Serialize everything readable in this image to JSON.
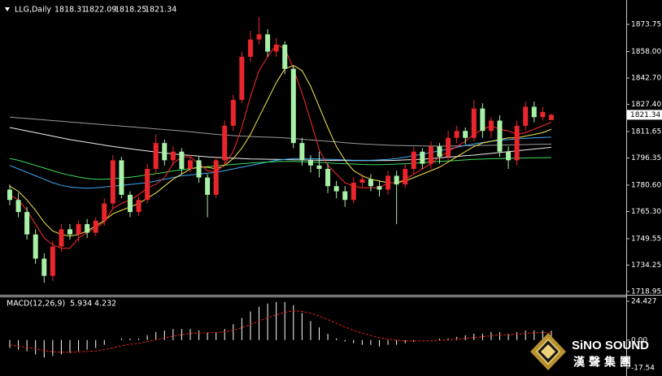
{
  "chart_data": [
    {
      "type": "candlestick",
      "title": "LLG,Daily",
      "open": [
        1778,
        1772,
        1765,
        1752,
        1738,
        1728,
        1745,
        1755,
        1752,
        1758,
        1753,
        1760,
        1770,
        1795,
        1775,
        1765,
        1772,
        1790,
        1805,
        1795,
        1800,
        1790,
        1795,
        1785,
        1775,
        1795,
        1815,
        1830,
        1855,
        1865,
        1868,
        1858,
        1862,
        1848,
        1805,
        1795,
        1792,
        1790,
        1780,
        1777,
        1772,
        1782,
        1784,
        1780,
        1778,
        1786,
        1781,
        1790,
        1800,
        1793,
        1803,
        1797,
        1808,
        1812,
        1808,
        1825,
        1812,
        1818,
        1800,
        1795,
        1815,
        1826,
        1820,
        1818.31
      ],
      "high": [
        1781,
        1776,
        1768,
        1755,
        1741,
        1748,
        1758,
        1758,
        1760,
        1761,
        1762,
        1773,
        1798,
        1797,
        1777,
        1774,
        1793,
        1810,
        1807,
        1803,
        1802,
        1798,
        1797,
        1787,
        1797,
        1818,
        1833,
        1858,
        1870,
        1878,
        1871,
        1866,
        1864,
        1850,
        1808,
        1798,
        1800,
        1793,
        1783,
        1780,
        1785,
        1787,
        1787,
        1783,
        1789,
        1789,
        1793,
        1803,
        1802,
        1806,
        1805,
        1812,
        1815,
        1814,
        1830,
        1828,
        1820,
        1821,
        1803,
        1818,
        1829,
        1829,
        1826,
        1822.09
      ],
      "low": [
        1769,
        1762,
        1749,
        1735,
        1724,
        1725,
        1742,
        1749,
        1748,
        1750,
        1751,
        1757,
        1767,
        1773,
        1762,
        1763,
        1770,
        1787,
        1792,
        1792,
        1787,
        1788,
        1782,
        1762,
        1773,
        1792,
        1812,
        1828,
        1852,
        1862,
        1855,
        1855,
        1845,
        1802,
        1792,
        1788,
        1785,
        1776,
        1773,
        1768,
        1770,
        1779,
        1777,
        1774,
        1775,
        1758,
        1779,
        1787,
        1790,
        1790,
        1793,
        1795,
        1805,
        1804,
        1806,
        1808,
        1808,
        1797,
        1790,
        1792,
        1812,
        1817,
        1818,
        1818.25
      ],
      "close": [
        1772,
        1765,
        1752,
        1738,
        1728,
        1745,
        1755,
        1752,
        1758,
        1753,
        1760,
        1770,
        1795,
        1775,
        1765,
        1772,
        1790,
        1805,
        1795,
        1800,
        1790,
        1795,
        1785,
        1775,
        1795,
        1815,
        1830,
        1855,
        1865,
        1868,
        1858,
        1862,
        1848,
        1805,
        1795,
        1792,
        1790,
        1780,
        1777,
        1772,
        1782,
        1784,
        1780,
        1778,
        1786,
        1781,
        1790,
        1800,
        1793,
        1803,
        1797,
        1808,
        1812,
        1808,
        1825,
        1812,
        1818,
        1800,
        1795,
        1815,
        1826,
        1820,
        1823,
        1821.34
      ],
      "up_color": "#e8262b",
      "down_color": "#a8f0a8",
      "series": [
        {
          "color": "#9a9a9a",
          "values": [
            1820,
            1819.6,
            1819.2,
            1818.8,
            1818.4,
            1818,
            1817.6,
            1817.2,
            1816.8,
            1816.4,
            1816,
            1815.6,
            1815.2,
            1814.8,
            1814.4,
            1814,
            1813.6,
            1813.2,
            1812.8,
            1812.4,
            1812,
            1811.5,
            1811,
            1810.5,
            1810,
            1809.6,
            1809.3,
            1809,
            1808.8,
            1808.6,
            1808.4,
            1808.2,
            1808,
            1807.6,
            1807.2,
            1806.8,
            1806.4,
            1806,
            1805.6,
            1805.2,
            1804.8,
            1804.5,
            1804.2,
            1804,
            1803.8,
            1803.6,
            1803.5,
            1803.4,
            1803.3,
            1803.2,
            1803.2,
            1803.2,
            1803.3,
            1803.4,
            1803.5,
            1803.6,
            1803.7,
            1803.8,
            1803.9,
            1804,
            1804.1,
            1804.2,
            1804.3,
            1804.4
          ]
        },
        {
          "color": "#f0f0f0",
          "values": [
            1814,
            1813,
            1812,
            1811,
            1810,
            1809,
            1808,
            1807,
            1806.2,
            1805.4,
            1804.6,
            1803.8,
            1803,
            1802.3,
            1801.6,
            1801,
            1800.4,
            1799.8,
            1799.2,
            1798.7,
            1798.2,
            1797.8,
            1797.4,
            1797,
            1796.7,
            1796.4,
            1796.2,
            1796,
            1795.8,
            1795.7,
            1795.6,
            1795.5,
            1795.4,
            1795.3,
            1795.2,
            1795.1,
            1795,
            1795,
            1794.9,
            1794.9,
            1794.8,
            1794.8,
            1794.8,
            1794.8,
            1794.9,
            1795,
            1795.2,
            1795.4,
            1795.6,
            1796,
            1796.4,
            1796.8,
            1797.2,
            1797.6,
            1798,
            1798.5,
            1799,
            1799.5,
            1800,
            1800.5,
            1801,
            1801.5,
            1802,
            1802.5
          ]
        },
        {
          "color": "#3fa9f5",
          "values": [
            1792,
            1790,
            1788,
            1786,
            1784,
            1782,
            1780.5,
            1779.5,
            1779,
            1778.8,
            1779,
            1779.5,
            1780,
            1780.5,
            1781,
            1781.5,
            1782,
            1783,
            1784,
            1785,
            1786,
            1786.5,
            1787,
            1787.5,
            1788,
            1789,
            1790,
            1791,
            1792,
            1793,
            1794,
            1795,
            1795.5,
            1796,
            1796,
            1796,
            1795.8,
            1795.6,
            1795.4,
            1795.2,
            1795,
            1795,
            1795,
            1795.2,
            1795.5,
            1796,
            1796.8,
            1797.6,
            1798.5,
            1799.5,
            1800.5,
            1801.5,
            1802.5,
            1803.5,
            1804.5,
            1805.3,
            1806,
            1806.6,
            1807,
            1807.4,
            1807.7,
            1808,
            1808.2,
            1808.4
          ]
        },
        {
          "color": "#3ddc5a",
          "values": [
            1796,
            1795,
            1793.5,
            1792,
            1790.5,
            1789,
            1787.5,
            1786.3,
            1785.3,
            1784.5,
            1784,
            1784,
            1784.3,
            1784.7,
            1785.2,
            1785.8,
            1786.5,
            1787.2,
            1788,
            1788.8,
            1789.5,
            1790.2,
            1790.8,
            1791.3,
            1791.8,
            1792.2,
            1792.6,
            1793,
            1793.4,
            1793.7,
            1794,
            1794.2,
            1794.3,
            1794.3,
            1794.2,
            1794,
            1793.8,
            1793.5,
            1793.2,
            1793,
            1792.8,
            1792.6,
            1792.5,
            1792.5,
            1792.6,
            1792.8,
            1793,
            1793.3,
            1793.6,
            1794,
            1794.3,
            1794.6,
            1794.9,
            1795.2,
            1795.5,
            1795.7,
            1795.9,
            1796,
            1796.1,
            1796.2,
            1796.3,
            1796.4,
            1796.5,
            1796.6
          ]
        },
        {
          "color": "#f5e84a",
          "values": [
            1780,
            1777,
            1772,
            1766,
            1759,
            1754,
            1752,
            1751,
            1752,
            1754,
            1757,
            1760,
            1764,
            1766,
            1768,
            1770,
            1773,
            1776,
            1780,
            1784,
            1787,
            1790,
            1791,
            1791,
            1790,
            1792,
            1796,
            1802,
            1810,
            1820,
            1830,
            1840,
            1848,
            1850,
            1847,
            1838,
            1826,
            1814,
            1803,
            1795,
            1789,
            1786,
            1784,
            1783,
            1782,
            1782,
            1783,
            1785,
            1787,
            1789,
            1791,
            1794,
            1797,
            1800,
            1803,
            1805,
            1806,
            1807,
            1808,
            1808,
            1809,
            1810,
            1811,
            1813
          ]
        },
        {
          "color": "#ff2a2a",
          "values": [
            1775,
            1772,
            1766,
            1758,
            1750,
            1746,
            1744,
            1744,
            1750,
            1753,
            1756,
            1759,
            1767,
            1770,
            1772,
            1775,
            1779,
            1781,
            1785,
            1793,
            1797,
            1797,
            1793,
            1789,
            1788,
            1793,
            1800,
            1814,
            1832,
            1847,
            1855,
            1862,
            1860,
            1848,
            1834,
            1818,
            1801,
            1792,
            1787,
            1782,
            1780,
            1779,
            1779,
            1779,
            1782,
            1782,
            1784,
            1787,
            1790,
            1793,
            1797,
            1800,
            1803,
            1806,
            1810,
            1813,
            1815,
            1813,
            1812,
            1810,
            1811,
            1813,
            1815,
            1817
          ]
        }
      ],
      "ylim": [
        1717.5,
        1887.9
      ],
      "yticks": [
        1873.75,
        {
          "value": 1858,
          "label": "1858.00"
        },
        {
          "value": 1842.7,
          "label": "1842.70"
        },
        {
          "value": 1827.4,
          "label": "1827.40"
        },
        1811.65,
        1796.35,
        {
          "value": 1780.6,
          "label": "1780.60"
        },
        {
          "value": 1765.3,
          "label": "1765.30"
        },
        1749.55,
        1734.25,
        1718.95
      ]
    },
    {
      "type": "macd",
      "title": "MACD(12,26,9)",
      "histogram": {
        "color": "#ffffff",
        "values": [
          -5,
          -6,
          -7,
          -9,
          -11,
          -10,
          -9,
          -8,
          -7,
          -6,
          -5,
          -3,
          0,
          1,
          1,
          1,
          3,
          5,
          6,
          7,
          7,
          7,
          6,
          5,
          5,
          7,
          10,
          14,
          18,
          21,
          23,
          24,
          24,
          22,
          17,
          12,
          8,
          4,
          1,
          -1,
          -2,
          -3,
          -3,
          -4,
          -3,
          -3,
          -2,
          -1,
          0,
          0,
          1,
          1,
          2,
          3,
          4,
          4,
          5,
          5,
          4,
          5,
          6,
          6,
          6,
          5.934
        ]
      },
      "signal": {
        "color": "#e02020",
        "values": [
          -3,
          -4,
          -4.5,
          -5.5,
          -6.6,
          -7.3,
          -7.6,
          -7.7,
          -7.5,
          -7.2,
          -6.8,
          -6,
          -4.8,
          -3.6,
          -2.7,
          -2,
          -1,
          0.2,
          1.4,
          2.5,
          3.4,
          4.1,
          4.5,
          4.6,
          4.7,
          5.2,
          6.2,
          7.8,
          9.8,
          12,
          14,
          15.9,
          17.5,
          18.4,
          18.1,
          16.9,
          15.1,
          12.9,
          10.5,
          8.2,
          6.2,
          4.4,
          2.9,
          1.5,
          0.6,
          -0.1,
          -0.5,
          -0.6,
          -0.5,
          -0.4,
          -0.1,
          0.1,
          0.5,
          1,
          1.6,
          2.1,
          2.7,
          3.2,
          3.4,
          3.7,
          4.2,
          4.6,
          4.9,
          4.232
        ]
      },
      "ylim": [
        -22.1,
        27.5
      ],
      "yticks": [
        24.427,
        {
          "value": 0,
          "label": "0.00"
        },
        -17.54
      ]
    }
  ],
  "logo": {
    "name": "SiNO SOUND",
    "subtitle": "漢聲集團"
  }
}
